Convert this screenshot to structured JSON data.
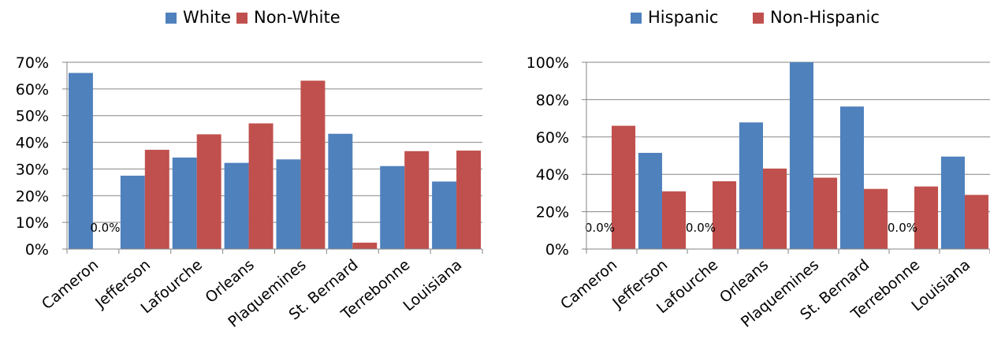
{
  "chart_data": [
    {
      "type": "bar",
      "categories": [
        "Cameron",
        "Jefferson",
        "Lafourche",
        "Orleans",
        "Plaquemines",
        "St. Bernard",
        "Terrebonne",
        "Louisiana"
      ],
      "series": [
        {
          "name": "White",
          "color": "#4f81bd",
          "values": [
            66,
            27.5,
            34.3,
            32.3,
            33.6,
            43.2,
            31.1,
            25.3
          ]
        },
        {
          "name": "Non-White",
          "color": "#c0504d",
          "values": [
            0,
            37.2,
            43,
            47.1,
            63.1,
            2.4,
            36.7,
            36.9
          ]
        }
      ],
      "data_labels": [
        {
          "series": 1,
          "index": 0,
          "text": "0.0%"
        }
      ],
      "ylim": [
        0,
        70
      ],
      "yticks": [
        "0%",
        "10%",
        "20%",
        "30%",
        "40%",
        "50%",
        "60%",
        "70%"
      ],
      "grid": true,
      "legend": "top"
    },
    {
      "type": "bar",
      "categories": [
        "Cameron",
        "Jefferson",
        "Lafourche",
        "Orleans",
        "Plaquemines",
        "St. Bernard",
        "Terrebonne",
        "Louisiana"
      ],
      "series": [
        {
          "name": "Hispanic",
          "color": "#4f81bd",
          "values": [
            0,
            51.5,
            0,
            67.8,
            100,
            76.3,
            0,
            49.5
          ]
        },
        {
          "name": "Non-Hispanic",
          "color": "#c0504d",
          "values": [
            66,
            30.9,
            36.3,
            43.1,
            38.2,
            32.2,
            33.5,
            29
          ]
        }
      ],
      "data_labels": [
        {
          "series": 0,
          "index": 0,
          "text": "0.0%"
        },
        {
          "series": 0,
          "index": 2,
          "text": "0.0%"
        },
        {
          "series": 0,
          "index": 6,
          "text": "0.0%"
        }
      ],
      "ylim": [
        0,
        100
      ],
      "yticks": [
        "0%",
        "20%",
        "40%",
        "60%",
        "80%",
        "100%"
      ],
      "grid": true,
      "legend": "top"
    }
  ]
}
